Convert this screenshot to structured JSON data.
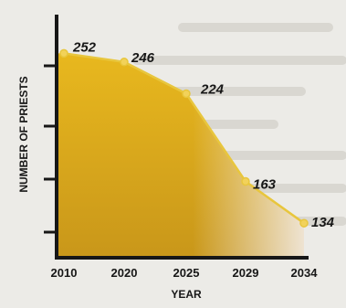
{
  "chart_data": {
    "type": "area",
    "title": "",
    "xlabel": "YEAR",
    "ylabel": "NUMBER OF PRIESTS",
    "categories": [
      "2010",
      "2020",
      "2025",
      "2029",
      "2034"
    ],
    "series": [
      {
        "values": [
          252,
          246,
          224,
          163,
          134
        ],
        "data_labels": [
          "252",
          "246",
          "224",
          "163",
          "134"
        ]
      }
    ],
    "ylim": [
      110,
      270
    ],
    "y_ticks_labeled": false,
    "grid": false,
    "colors": {
      "fill_top": "#e8b81e",
      "fill_bottom": "#c9971a",
      "fill_fade": "#f0e7dc",
      "line": "#e8c63d",
      "axis": "#171717",
      "background": "#ecebe7"
    }
  }
}
